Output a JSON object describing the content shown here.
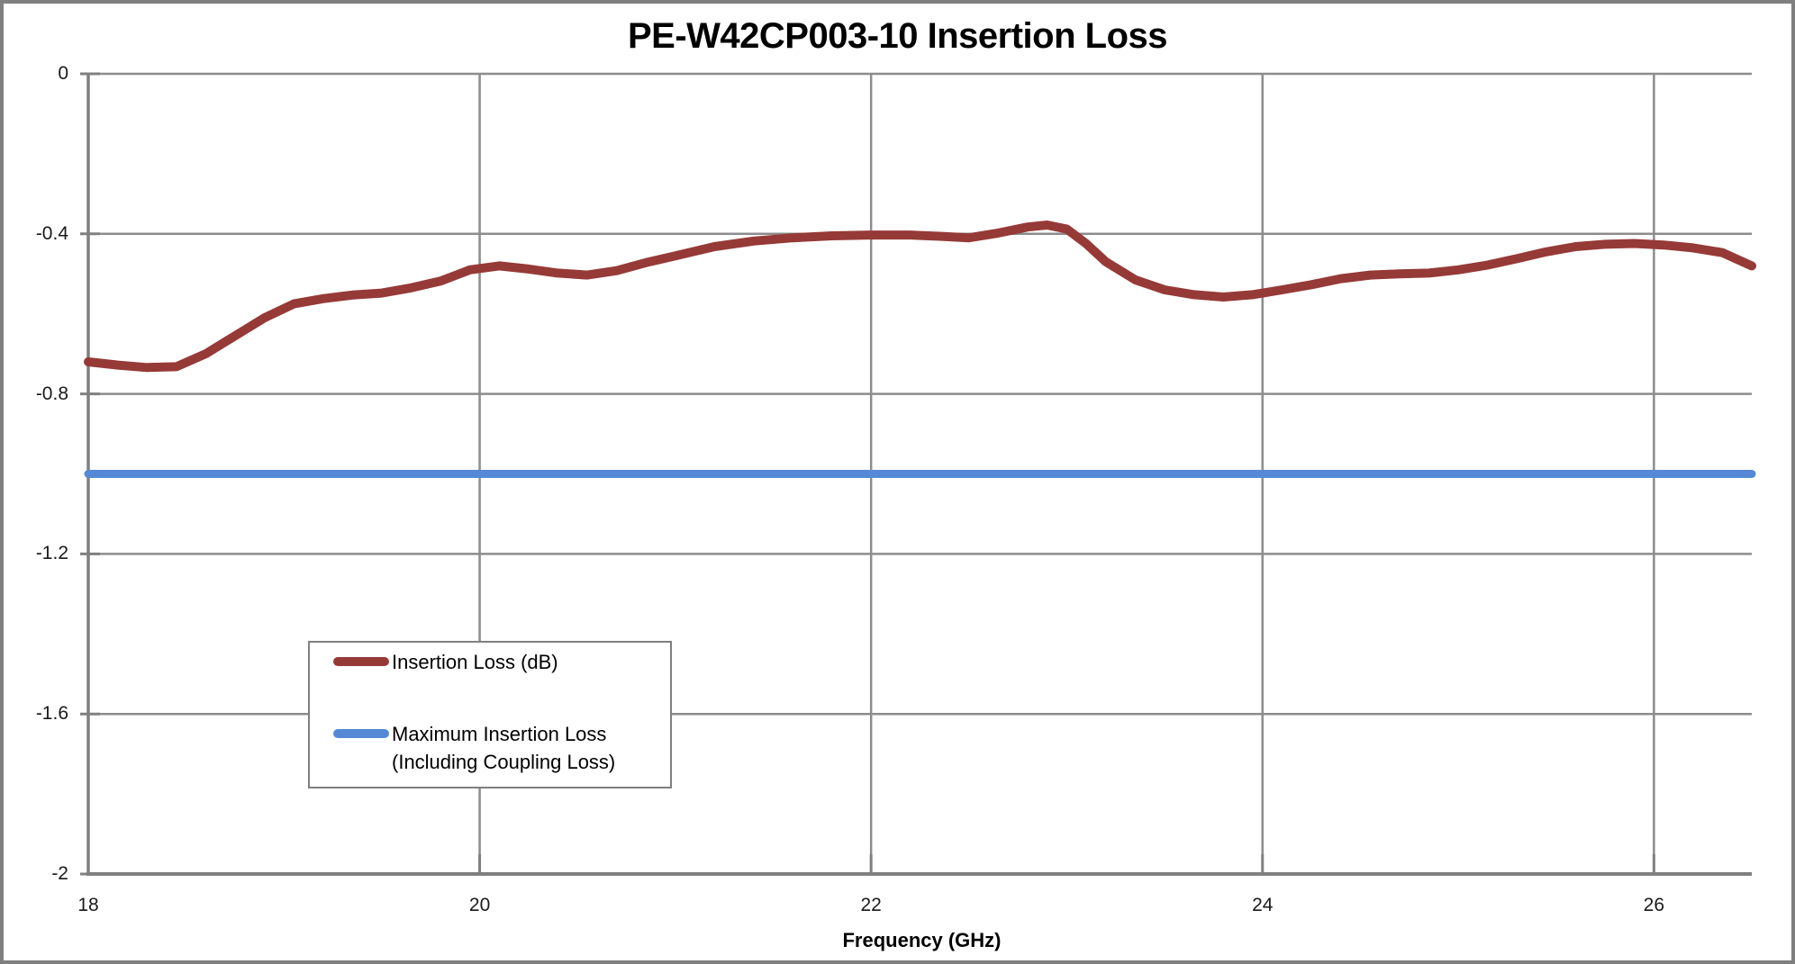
{
  "title": "PE-W42CP003-10 Insertion Loss",
  "x_axis_title": "Frequency (GHz)",
  "legend": {
    "entry1_label": "Insertion Loss (dB)",
    "entry2_label_line1": "Maximum Insertion Loss",
    "entry2_label_line2": "(Including Coupling Loss)"
  },
  "colors": {
    "insertion_loss_line": "#963a37",
    "max_insertion_loss_line": "#5589d5",
    "gridline": "#8c8c8c",
    "axis": "#808080",
    "frame_border": "#7f7f7f",
    "text": "#000000"
  },
  "chart_data": {
    "type": "line",
    "title": "PE-W42CP003-10 Insertion Loss",
    "xlabel": "Frequency (GHz)",
    "ylabel": "",
    "xlim": [
      18,
      26.5
    ],
    "ylim": [
      -2,
      0
    ],
    "x_ticks": [
      18,
      20,
      22,
      24,
      26
    ],
    "y_ticks": [
      0,
      -0.4,
      -0.8,
      -1.2,
      -1.6,
      -2
    ],
    "y_tick_labels": [
      "0",
      "-0.4",
      "-0.8",
      "-1.2",
      "-1.6",
      "-2"
    ],
    "x_tick_labels": [
      "18",
      "20",
      "22",
      "24",
      "26"
    ],
    "grid": true,
    "legend_position": "inside-lower-left",
    "series": [
      {
        "name": "Insertion Loss (dB)",
        "color": "#963a37",
        "x": [
          18,
          18.15,
          18.3,
          18.45,
          18.6,
          18.75,
          18.9,
          19.05,
          19.2,
          19.35,
          19.5,
          19.65,
          19.8,
          19.95,
          20.1,
          20.25,
          20.4,
          20.55,
          20.7,
          20.85,
          21,
          21.2,
          21.4,
          21.6,
          21.8,
          22,
          22.2,
          22.35,
          22.5,
          22.65,
          22.8,
          22.9,
          23,
          23.1,
          23.2,
          23.35,
          23.5,
          23.65,
          23.8,
          23.95,
          24.1,
          24.25,
          24.4,
          24.55,
          24.7,
          24.85,
          25,
          25.15,
          25.3,
          25.45,
          25.6,
          25.75,
          25.9,
          26.05,
          26.2,
          26.35,
          26.5
        ],
        "y": [
          -0.72,
          -0.728,
          -0.734,
          -0.732,
          -0.7,
          -0.655,
          -0.61,
          -0.575,
          -0.562,
          -0.553,
          -0.548,
          -0.535,
          -0.518,
          -0.49,
          -0.48,
          -0.488,
          -0.498,
          -0.503,
          -0.492,
          -0.472,
          -0.455,
          -0.432,
          -0.418,
          -0.41,
          -0.405,
          -0.403,
          -0.403,
          -0.406,
          -0.41,
          -0.398,
          -0.383,
          -0.378,
          -0.388,
          -0.425,
          -0.47,
          -0.515,
          -0.54,
          -0.552,
          -0.558,
          -0.552,
          -0.54,
          -0.527,
          -0.512,
          -0.503,
          -0.5,
          -0.498,
          -0.49,
          -0.478,
          -0.462,
          -0.445,
          -0.432,
          -0.426,
          -0.424,
          -0.428,
          -0.435,
          -0.447,
          -0.48
        ]
      },
      {
        "name": "Maximum Insertion Loss (Including Coupling Loss)",
        "color": "#5589d5",
        "x": [
          18,
          26.5
        ],
        "y": [
          -1.0,
          -1.0
        ]
      }
    ]
  }
}
